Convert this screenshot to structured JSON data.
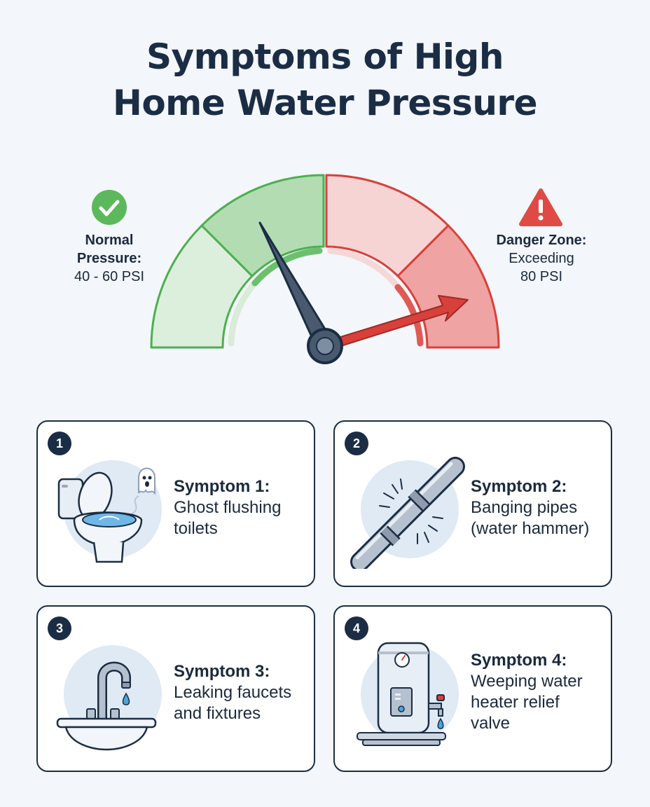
{
  "title": {
    "line1": "Symptoms of High",
    "line2": "Home Water Pressure"
  },
  "gauge": {
    "normal": {
      "heading_line1": "Normal",
      "heading_line2": "Pressure:",
      "value": "40 - 60 PSI",
      "icon": "check-circle-icon",
      "color": "#5cb85c"
    },
    "danger": {
      "heading": "Danger Zone:",
      "value_line1": "Exceeding",
      "value_line2": "80 PSI",
      "icon": "warning-triangle-icon",
      "color": "#d9403a"
    }
  },
  "symptoms": [
    {
      "number": "1",
      "title": "Symptom 1:",
      "desc_lines": [
        "Ghost flushing",
        "toilets"
      ],
      "icon": "toilet-icon"
    },
    {
      "number": "2",
      "title": "Symptom 2:",
      "desc_lines": [
        "Banging pipes",
        "(water hammer)"
      ],
      "icon": "pipe-icon"
    },
    {
      "number": "3",
      "title": "Symptom 3:",
      "desc_lines": [
        "Leaking faucets",
        "and fixtures"
      ],
      "icon": "faucet-icon"
    },
    {
      "number": "4",
      "title": "Symptom 4:",
      "desc_lines": [
        "Weeping water",
        "heater relief",
        "valve"
      ],
      "icon": "water-heater-icon"
    }
  ]
}
